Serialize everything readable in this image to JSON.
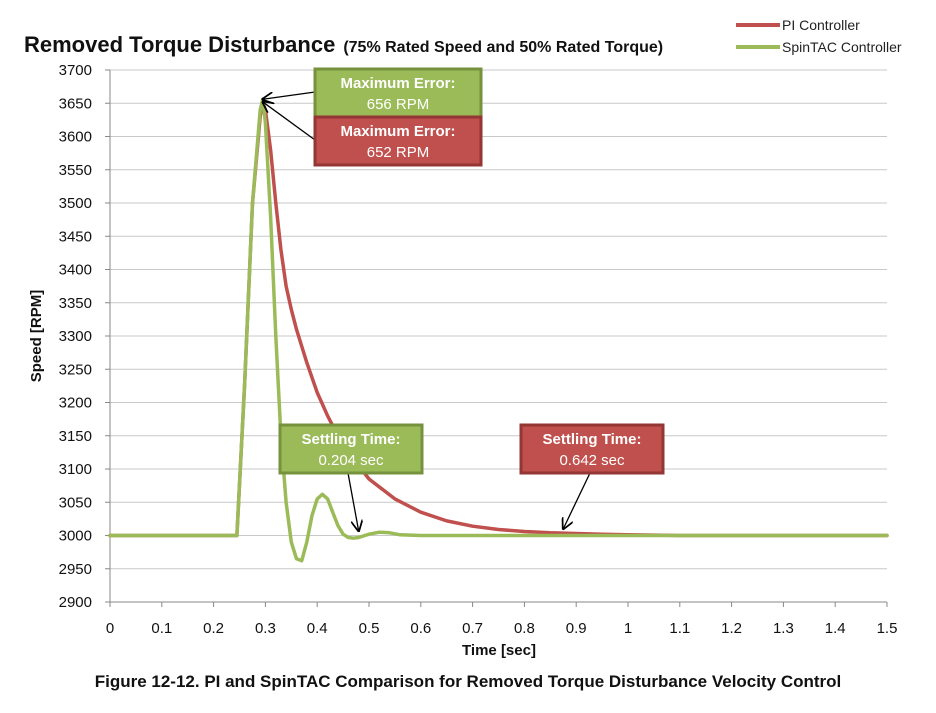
{
  "chart_data": {
    "type": "line",
    "title": "Removed Torque Disturbance",
    "subtitle": "(75% Rated Speed and 50% Rated Torque)",
    "xlabel": "Time [sec]",
    "ylabel": "Speed [RPM]",
    "xlim": [
      0,
      1.5
    ],
    "ylim": [
      2900,
      3700
    ],
    "x_ticks": [
      0,
      0.1,
      0.2,
      0.3,
      0.4,
      0.5,
      0.6,
      0.7,
      0.8,
      0.9,
      1,
      1.1,
      1.2,
      1.3,
      1.4,
      1.5
    ],
    "y_ticks": [
      2900,
      2950,
      3000,
      3050,
      3100,
      3150,
      3200,
      3250,
      3300,
      3350,
      3400,
      3450,
      3500,
      3550,
      3600,
      3650,
      3700
    ],
    "grid": "horizontal",
    "legend_position": "top-right",
    "series": [
      {
        "name": "PI Controller",
        "color": "#c0504d",
        "x": [
          0,
          0.1,
          0.2,
          0.245,
          0.26,
          0.275,
          0.29,
          0.295,
          0.3,
          0.31,
          0.32,
          0.33,
          0.34,
          0.35,
          0.36,
          0.38,
          0.4,
          0.42,
          0.44,
          0.46,
          0.48,
          0.5,
          0.55,
          0.6,
          0.65,
          0.7,
          0.75,
          0.8,
          0.85,
          0.9,
          0.95,
          1.0,
          1.1,
          1.2,
          1.3,
          1.4,
          1.5
        ],
        "y": [
          3000,
          3000,
          3000,
          3000,
          3230,
          3500,
          3630,
          3652,
          3640,
          3580,
          3500,
          3430,
          3375,
          3340,
          3310,
          3260,
          3215,
          3180,
          3150,
          3125,
          3105,
          3085,
          3055,
          3035,
          3022,
          3014,
          3009,
          3006,
          3004,
          3003,
          3002,
          3001,
          3000,
          3000,
          3000,
          3000,
          3000
        ]
      },
      {
        "name": "SpinTAC Controller",
        "color": "#9bbb59",
        "x": [
          0,
          0.1,
          0.2,
          0.245,
          0.26,
          0.275,
          0.29,
          0.295,
          0.3,
          0.31,
          0.32,
          0.33,
          0.34,
          0.35,
          0.36,
          0.37,
          0.38,
          0.39,
          0.4,
          0.41,
          0.42,
          0.43,
          0.44,
          0.45,
          0.46,
          0.47,
          0.48,
          0.5,
          0.52,
          0.54,
          0.56,
          0.6,
          0.7,
          0.8,
          0.9,
          1.0,
          1.1,
          1.2,
          1.3,
          1.4,
          1.5
        ],
        "y": [
          3000,
          3000,
          3000,
          3000,
          3230,
          3500,
          3640,
          3656,
          3620,
          3480,
          3300,
          3150,
          3050,
          2990,
          2965,
          2962,
          2990,
          3030,
          3055,
          3062,
          3055,
          3035,
          3015,
          3002,
          2997,
          2996,
          2997,
          3002,
          3005,
          3004,
          3001,
          3000,
          3000,
          3000,
          3000,
          3000,
          3000,
          3000,
          3000,
          3000,
          3000
        ]
      }
    ],
    "annotations": [
      {
        "id": "spintac-max",
        "line1": "Maximum Error:",
        "line2": "656 RPM",
        "color": "#9bbb59",
        "target": [
          0.295,
          3656
        ]
      },
      {
        "id": "pi-max",
        "line1": "Maximum Error:",
        "line2": "652 RPM",
        "color": "#c0504d",
        "target": [
          0.295,
          3652
        ]
      },
      {
        "id": "spintac-settle",
        "line1": "Settling Time:",
        "line2": "0.204 sec",
        "color": "#9bbb59",
        "target": [
          0.48,
          3007
        ]
      },
      {
        "id": "pi-settle",
        "line1": "Settling Time:",
        "line2": "0.642 sec",
        "color": "#c0504d",
        "target": [
          0.875,
          3010
        ]
      }
    ]
  },
  "caption": "Figure 12-12. PI and SpinTAC Comparison for Removed Torque Disturbance Velocity Control"
}
